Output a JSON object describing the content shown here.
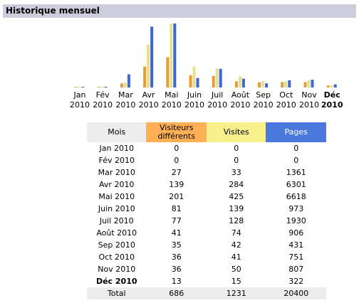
{
  "title": "Historique mensuel",
  "chart_data": {
    "type": "bar",
    "categories": [
      "Jan 2010",
      "Fév 2010",
      "Mar 2010",
      "Avr 2010",
      "Mai 2010",
      "Juin 2010",
      "Juil 2010",
      "Août 2010",
      "Sep 2010",
      "Oct 2010",
      "Nov 2010",
      "Déc 2010"
    ],
    "series": [
      {
        "name": "Visiteurs différents",
        "color": "#e39b3c",
        "values": [
          0,
          0,
          27,
          139,
          201,
          81,
          77,
          41,
          35,
          36,
          36,
          13
        ]
      },
      {
        "name": "Visites",
        "color": "#e8e08a",
        "values": [
          0,
          0,
          33,
          284,
          425,
          139,
          128,
          74,
          42,
          41,
          50,
          15
        ]
      },
      {
        "name": "Pages",
        "color": "#3d66d8",
        "values": [
          0,
          0,
          1361,
          6301,
          6618,
          973,
          1930,
          906,
          431,
          751,
          807,
          322
        ]
      }
    ]
  },
  "table": {
    "month_header": "Mois",
    "total_label": "Total",
    "totals": [
      686,
      1231,
      20400
    ]
  }
}
